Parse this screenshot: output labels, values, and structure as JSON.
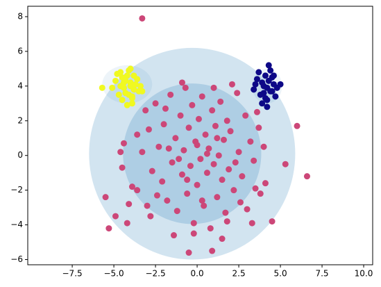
{
  "chart_data": {
    "type": "scatter",
    "xlim": [
      -10.17,
      10.54
    ],
    "ylim": [
      -6.3,
      8.6
    ],
    "xticks": [
      {
        "value": -7.5,
        "label": "−7.5"
      },
      {
        "value": -5,
        "label": "−5.0"
      },
      {
        "value": -2.5,
        "label": "−2.5"
      },
      {
        "value": 0,
        "label": "0.0"
      },
      {
        "value": 2.5,
        "label": "2.5"
      },
      {
        "value": 5,
        "label": "5.0"
      },
      {
        "value": 7.5,
        "label": "7.5"
      },
      {
        "value": 10,
        "label": "10.0"
      }
    ],
    "yticks": [
      {
        "value": -6,
        "label": "−6"
      },
      {
        "value": -4,
        "label": "−4"
      },
      {
        "value": -2,
        "label": "−2"
      },
      0,
      2,
      4,
      6,
      8
    ],
    "ellipses": [
      {
        "cx": -0.3,
        "cy": 0.1,
        "rx": 6.19,
        "ry": 6.1,
        "color": "#1f77b4",
        "opacity": 0.2
      },
      {
        "cx": -0.3,
        "cy": 0.1,
        "rx": 4.15,
        "ry": 4.05,
        "color": "#1f77b4",
        "opacity": 0.2
      },
      {
        "cx": -4.2,
        "cy": 4.1,
        "rx": 1.5,
        "ry": 1.1,
        "color": "#1f77b4",
        "opacity": 0.08
      },
      {
        "cx": 4.2,
        "cy": 4.0,
        "rx": 0.9,
        "ry": 1.0,
        "color": "#1f77b4",
        "opacity": 0.08
      }
    ],
    "series": [
      {
        "color": "#cc4778",
        "x": [
          -3.3,
          6.6,
          6.0,
          -5.3,
          -5.5,
          5.3,
          4.5,
          0.9,
          -0.5,
          -4.9,
          -4.2,
          -4.5,
          -4.4,
          -4.1,
          -3.9,
          -3.6,
          -3.1,
          -2.8,
          -2.5,
          -2.3,
          -2.1,
          -2.0,
          -1.8,
          -1.6,
          -1.5,
          -1.3,
          -1.2,
          -1.0,
          -0.9,
          -0.8,
          -0.7,
          -0.6,
          -0.5,
          -0.4,
          -0.3,
          -0.2,
          -0.1,
          0.0,
          0.1,
          0.2,
          0.3,
          0.4,
          0.5,
          0.6,
          0.7,
          0.8,
          0.9,
          1.0,
          1.1,
          1.2,
          1.3,
          1.4,
          1.5,
          1.6,
          1.7,
          1.8,
          1.9,
          2.0,
          2.2,
          2.4,
          2.5,
          2.7,
          2.9,
          3.0,
          3.2,
          3.4,
          3.6,
          3.8,
          4.0,
          4.1,
          -1.4,
          -2.7,
          -3.3,
          2.1,
          -0.9,
          1.5,
          3.3,
          -3.6,
          0.3,
          -1.9,
          2.6,
          -2.9,
          1.0,
          -0.2,
          -2.4,
          3.7,
          0.6,
          -1.1,
          1.2,
          -0.6,
          0.0,
          2.3,
          -1.7,
          3.5,
          -3.0,
          1.8,
          -4.6
        ],
        "y": [
          7.9,
          -1.2,
          1.7,
          -4.2,
          -2.4,
          -0.5,
          -3.8,
          -5.5,
          -5.6,
          -3.5,
          -3.9,
          -0.7,
          0.7,
          -2.8,
          -1.8,
          1.2,
          2.6,
          -3.5,
          3.0,
          0.5,
          -1.5,
          1.8,
          -2.6,
          3.5,
          -0.4,
          1.0,
          -3.2,
          2.3,
          -1.1,
          0.3,
          3.9,
          -2.2,
          1.6,
          -0.6,
          2.9,
          -3.9,
          0.8,
          -1.7,
          2.1,
          -0.2,
          3.4,
          -2.9,
          1.2,
          -1.0,
          0.4,
          -4.2,
          2.6,
          -0.5,
          1.7,
          -2.4,
          0.0,
          3.1,
          -1.4,
          0.9,
          -3.3,
          2.0,
          -0.8,
          1.4,
          -2.0,
          3.6,
          0.2,
          -1.2,
          2.3,
          -3.1,
          0.8,
          -0.3,
          2.5,
          -2.2,
          0.5,
          -1.6,
          -4.6,
          -0.9,
          0.2,
          4.1,
          4.2,
          -4.8,
          -3.9,
          -2.0,
          -2.6,
          2.7,
          -2.7,
          1.5,
          3.9,
          -4.5,
          -2.3,
          1.6,
          0.1,
          -0.2,
          1.0,
          -1.4,
          0.6,
          -0.4,
          0.4,
          -1.9,
          -2.9,
          -3.8,
          0.2
        ]
      },
      {
        "color": "#f0f921",
        "x": [
          -4.5,
          -4.0,
          -3.8,
          -4.3,
          -4.6,
          -3.6,
          -4.1,
          -4.9,
          -3.9,
          -4.4,
          -4.2,
          -3.5,
          -4.7,
          -4.0,
          -3.7,
          -4.8,
          -4.3,
          -3.9,
          -5.1,
          -4.5,
          -3.4,
          -4.1,
          -4.6,
          -3.8,
          -4.2,
          -5.7,
          -3.3,
          -4.0,
          -4.4,
          -3.9
        ],
        "y": [
          4.5,
          4.2,
          3.8,
          3.6,
          4.0,
          4.4,
          4.9,
          4.3,
          3.3,
          3.9,
          4.6,
          3.7,
          3.5,
          4.0,
          4.1,
          4.7,
          4.3,
          3.0,
          3.9,
          3.2,
          4.0,
          3.5,
          4.8,
          4.6,
          2.9,
          3.9,
          3.7,
          5.0,
          4.2,
          3.4
        ]
      },
      {
        "color": "#0d0887",
        "x": [
          4.0,
          4.3,
          4.5,
          3.8,
          4.1,
          4.6,
          4.2,
          3.6,
          4.4,
          4.8,
          3.9,
          4.3,
          4.0,
          4.7,
          3.5,
          4.2,
          4.5,
          3.7,
          4.1,
          4.4,
          3.9,
          4.6,
          4.2,
          3.4,
          5.0
        ],
        "y": [
          4.0,
          4.3,
          3.7,
          3.5,
          4.6,
          4.1,
          3.2,
          4.4,
          4.9,
          3.9,
          3.0,
          5.2,
          3.6,
          3.4,
          4.1,
          3.9,
          4.5,
          4.8,
          3.3,
          3.7,
          4.2,
          4.6,
          2.8,
          3.8,
          4.1
        ]
      }
    ]
  }
}
